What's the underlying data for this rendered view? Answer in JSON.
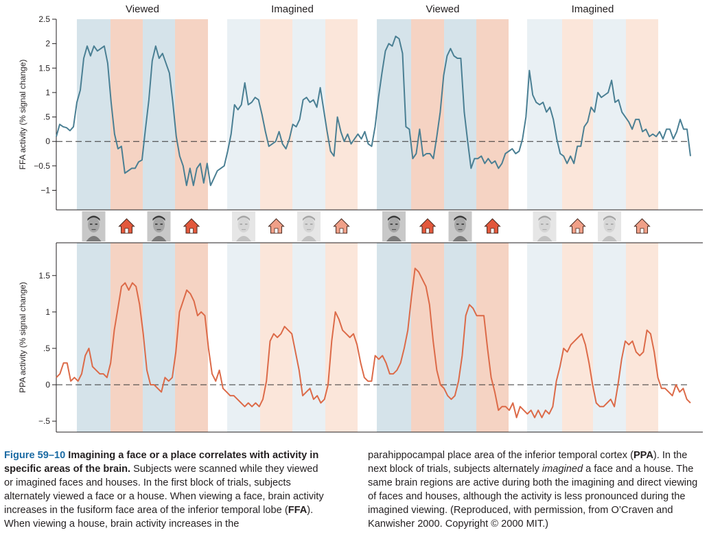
{
  "chart_data": [
    {
      "type": "line",
      "ylabel": "FFA activity (% signal change)",
      "ylim": [
        -1.4,
        2.5
      ],
      "yticks": [
        2.5,
        2,
        1.5,
        1,
        0.5,
        0,
        -0.5,
        -1
      ],
      "ytick_labels": [
        "2.5",
        "2",
        "1.5",
        "1",
        ".5",
        "0",
        "−0.5",
        "−1"
      ],
      "grid": false,
      "baseline": 0,
      "series": [
        {
          "color": "#4a7f93",
          "values": [
            0.1,
            0.35,
            0.3,
            0.28,
            0.22,
            0.3,
            0.8,
            1.05,
            1.7,
            1.95,
            1.75,
            1.95,
            1.85,
            1.9,
            1.95,
            1.6,
            0.8,
            0.15,
            -0.15,
            -0.1,
            -0.65,
            -0.6,
            -0.55,
            -0.55,
            -0.42,
            -0.38,
            0.25,
            0.85,
            1.65,
            1.95,
            1.7,
            1.8,
            1.6,
            1.4,
            0.8,
            0.1,
            -0.3,
            -0.5,
            -0.9,
            -0.55,
            -0.9,
            -0.55,
            -0.45,
            -0.85,
            -0.45,
            -0.9,
            -0.75,
            -0.6,
            -0.55,
            -0.5,
            -0.2,
            0.15,
            0.75,
            0.65,
            0.75,
            1.2,
            0.75,
            0.8,
            0.9,
            0.85,
            0.55,
            0.2,
            -0.1,
            -0.05,
            0.0,
            0.2,
            -0.05,
            -0.15,
            0.05,
            0.35,
            0.3,
            0.45,
            0.85,
            0.9,
            0.8,
            0.85,
            0.7,
            1.1,
            0.65,
            0.2,
            -0.2,
            -0.3,
            0.5,
            0.2,
            0.0,
            0.15,
            -0.05,
            0.05,
            0.15,
            0.05,
            0.2,
            -0.05,
            -0.1,
            0.3,
            0.9,
            1.4,
            1.85,
            2.0,
            1.95,
            2.15,
            2.1,
            1.8,
            0.3,
            0.25,
            -0.35,
            -0.25,
            0.25,
            -0.3,
            -0.25,
            -0.25,
            -0.35,
            0.1,
            0.6,
            1.35,
            1.75,
            1.9,
            1.75,
            1.7,
            1.7,
            0.6,
            0.0,
            -0.55,
            -0.35,
            -0.35,
            -0.3,
            -0.45,
            -0.35,
            -0.45,
            -0.4,
            -0.55,
            -0.45,
            -0.25,
            -0.2,
            -0.15,
            -0.25,
            -0.2,
            0.05,
            0.5,
            1.45,
            0.95,
            0.8,
            0.75,
            0.8,
            0.6,
            0.7,
            0.45,
            0.05,
            -0.25,
            -0.3,
            -0.45,
            -0.3,
            -0.45,
            -0.1,
            -0.1,
            0.3,
            0.4,
            0.7,
            0.6,
            1.0,
            0.9,
            0.95,
            1.0,
            1.25,
            0.8,
            0.85,
            0.6,
            0.5,
            0.4,
            0.25,
            0.45,
            0.45,
            0.2,
            0.25,
            0.1,
            0.15,
            0.1,
            0.2,
            0.05,
            0.25,
            0.25,
            0.05,
            0.2,
            0.45,
            0.25,
            0.25,
            -0.3
          ]
        }
      ]
    },
    {
      "type": "line",
      "ylabel": "PPA activity (% signal change)",
      "ylim": [
        -0.65,
        1.95
      ],
      "yticks": [
        1.5,
        1,
        0.5,
        0,
        -0.5
      ],
      "ytick_labels": [
        "1.5",
        "1",
        ".5",
        "0",
        "−.5"
      ],
      "grid": false,
      "baseline": 0,
      "series": [
        {
          "color": "#dc6a48",
          "values": [
            0.1,
            0.15,
            0.3,
            0.3,
            0.05,
            0.1,
            0.05,
            0.15,
            0.4,
            0.5,
            0.25,
            0.2,
            0.15,
            0.15,
            0.1,
            0.3,
            0.75,
            1.05,
            1.35,
            1.4,
            1.3,
            1.4,
            1.35,
            1.1,
            0.7,
            0.2,
            0.0,
            0.0,
            -0.05,
            -0.1,
            0.1,
            0.05,
            0.1,
            0.45,
            1.0,
            1.15,
            1.3,
            1.25,
            1.15,
            0.95,
            1.0,
            0.95,
            0.5,
            0.15,
            0.05,
            0.2,
            -0.05,
            -0.1,
            -0.15,
            -0.15,
            -0.2,
            -0.25,
            -0.3,
            -0.25,
            -0.3,
            -0.25,
            -0.3,
            -0.2,
            0.05,
            0.6,
            0.7,
            0.65,
            0.7,
            0.8,
            0.75,
            0.7,
            0.45,
            0.2,
            -0.15,
            -0.1,
            -0.05,
            -0.2,
            -0.15,
            -0.25,
            -0.2,
            0.0,
            0.6,
            1.0,
            0.9,
            0.75,
            0.7,
            0.65,
            0.7,
            0.55,
            0.3,
            0.1,
            0.05,
            0.05,
            0.4,
            0.35,
            0.4,
            0.3,
            0.15,
            0.15,
            0.2,
            0.3,
            0.5,
            0.75,
            1.2,
            1.6,
            1.55,
            1.45,
            1.35,
            1.1,
            0.6,
            0.2,
            0.0,
            -0.05,
            -0.15,
            -0.2,
            -0.15,
            0.05,
            0.4,
            0.95,
            1.1,
            1.05,
            0.95,
            0.95,
            0.95,
            0.5,
            0.1,
            -0.1,
            -0.35,
            -0.3,
            -0.3,
            -0.35,
            -0.25,
            -0.45,
            -0.3,
            -0.35,
            -0.4,
            -0.35,
            -0.45,
            -0.35,
            -0.45,
            -0.35,
            -0.4,
            -0.3,
            0.05,
            0.25,
            0.5,
            0.45,
            0.55,
            0.6,
            0.65,
            0.7,
            0.55,
            0.3,
            0.0,
            -0.25,
            -0.3,
            -0.3,
            -0.25,
            -0.2,
            -0.3,
            0.0,
            0.35,
            0.6,
            0.55,
            0.6,
            0.45,
            0.4,
            0.45,
            0.75,
            0.7,
            0.45,
            0.1,
            -0.05,
            -0.05,
            -0.1,
            -0.15,
            0.0,
            -0.1,
            -0.05,
            -0.2,
            -0.25
          ]
        }
      ]
    }
  ],
  "conditions": [
    {
      "label": "Viewed",
      "blocks": [
        "face",
        "house",
        "face",
        "house"
      ]
    },
    {
      "label": "Imagined",
      "blocks": [
        "face",
        "house",
        "face",
        "house"
      ]
    },
    {
      "label": "Viewed",
      "blocks": [
        "face",
        "house",
        "face",
        "house"
      ]
    },
    {
      "label": "Imagined",
      "blocks": [
        "face",
        "house",
        "face",
        "house"
      ]
    }
  ],
  "colors": {
    "viewed_face_band": "#d5e3ea",
    "viewed_house_band": "#f5d3c3",
    "imagined_face_band": "#e9f0f4",
    "imagined_house_band": "#fbe6da",
    "ffa_line": "#4a7f93",
    "ppa_line": "#dc6a48",
    "house_viewed": "#e2583c",
    "house_imagined": "#f0a088",
    "caption_label": "#1a6aa3"
  },
  "stimulus_icons": {
    "face": "face-photo",
    "house": "house-icon"
  },
  "caption": {
    "label": "Figure 59–10",
    "headline": "Imagining a face or a place correlates with activity in specific areas of the brain.",
    "text_1": " Subjects were scanned while they viewed or imagined faces and houses. In the first block of trials, subjects alternately viewed a face or a house. When viewing a face, brain activity increases in the fusiform face area of the inferior temporal lobe (",
    "abbr_ffa": "FFA",
    "text_2": "). When viewing a house, brain activity increases in the parahippocampal place area of the inferior temporal cortex (",
    "abbr_ppa": "PPA",
    "text_3": "). In the next block of trials, subjects alternately ",
    "em_imagined": "imagined",
    "text_4": " a face and a house. The same brain regions are active during both the imagining and direct viewing of faces and houses, although the activity is less pronounced during the imagined viewing. (Reproduced, with permission, from O’Craven and Kanwisher 2000. Copyright © 2000 MIT.)"
  }
}
